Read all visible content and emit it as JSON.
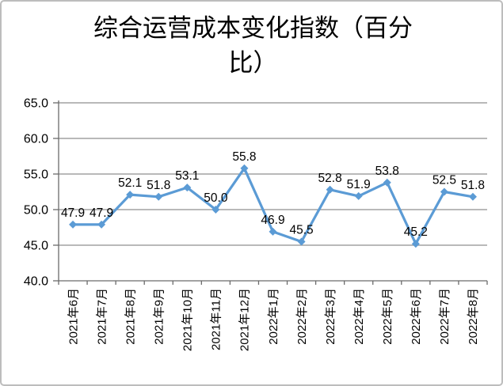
{
  "title": "综合运营成本变化指数（百分比）",
  "title_lines": [
    "综合运营成本变化指数（百分",
    "比）"
  ],
  "chart_data": {
    "type": "line",
    "title": "综合运营成本变化指数（百分比）",
    "categories": [
      "2021年6月",
      "2021年7月",
      "2021年8月",
      "2021年9月",
      "2021年10月",
      "2021年11月",
      "2021年12月",
      "2022年1月",
      "2022年2月",
      "2022年3月",
      "2022年4月",
      "2022年5月",
      "2022年6月",
      "2022年7月",
      "2022年8月"
    ],
    "values": [
      47.9,
      47.9,
      52.1,
      51.8,
      53.1,
      50.0,
      55.8,
      46.9,
      45.5,
      52.8,
      51.9,
      53.8,
      45.2,
      52.5,
      51.8
    ],
    "data_labels": [
      "47.9",
      "47.9",
      "52.1",
      "51.8",
      "53.1",
      "50.0",
      "55.8",
      "46.9",
      "45.5",
      "52.8",
      "51.9",
      "53.8",
      "45.2",
      "52.5",
      "51.8"
    ],
    "ylim": [
      40.0,
      65.0
    ],
    "ytick_step": 5.0,
    "ytick_labels": [
      "40.0",
      "45.0",
      "50.0",
      "55.0",
      "60.0",
      "65.0"
    ],
    "grid": true,
    "legend": "none",
    "marker": "diamond",
    "colors": {
      "line": "#5b9bd5",
      "marker": "#5b9bd5",
      "data_label": "#000000",
      "gridline": "#8f8f8f",
      "axis": "#6b6b6b",
      "tick_label": "#000000",
      "title": "#000000"
    }
  }
}
